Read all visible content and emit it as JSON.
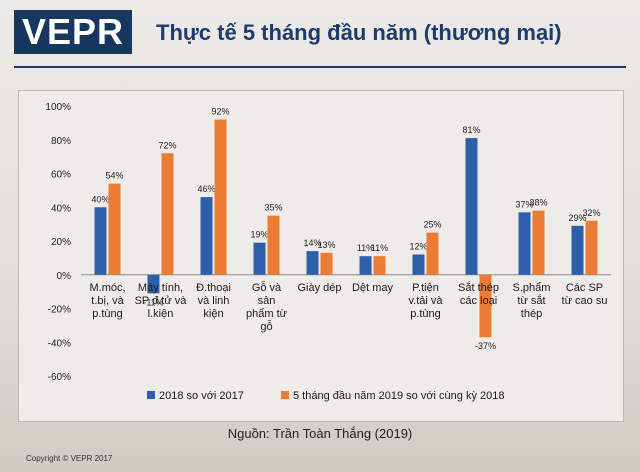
{
  "header": {
    "logo": "VEPR",
    "title": "Thực tế 5 tháng đầu năm (thương mại)"
  },
  "chart_data": {
    "type": "bar",
    "title": "",
    "xlabel": "",
    "ylabel": "",
    "ylim": [
      -60,
      100
    ],
    "yticks": [
      "100%",
      "80%",
      "60%",
      "40%",
      "20%",
      "0%",
      "-20%",
      "-40%",
      "-60%"
    ],
    "grid": false,
    "legend_position": "bottom",
    "categories": [
      [
        "M.móc,",
        "t.bị, và",
        "p.tùng"
      ],
      [
        "Máy tính,",
        "SP đ.tử và",
        "l.kiện"
      ],
      [
        "Đ.thoại",
        "và linh",
        "kiện"
      ],
      [
        "Gỗ và",
        "sản",
        "phẩm từ",
        "gỗ"
      ],
      [
        "Giày dép"
      ],
      [
        "Dệt may"
      ],
      [
        "P.tiện",
        "v.tải và",
        "p.tùng"
      ],
      [
        "Sắt thép",
        "các loại"
      ],
      [
        "S.phẩm",
        "từ sắt",
        "thép"
      ],
      [
        "Các SP",
        "từ cao su"
      ]
    ],
    "series": [
      {
        "name": "2018 so với 2017",
        "color": "#2e5fa8",
        "values": [
          40,
          -11,
          46,
          19,
          14,
          11,
          12,
          81,
          37,
          29
        ],
        "labels": [
          "40%",
          "-11%",
          "46%",
          "19%",
          "14%",
          "11%",
          "12%",
          "81%",
          "37%",
          "29%"
        ]
      },
      {
        "name": "5 tháng đầu năm 2019 so với cùng kỳ 2018",
        "color": "#ec7b33",
        "values": [
          54,
          72,
          92,
          35,
          13,
          11,
          25,
          -37,
          38,
          32
        ],
        "labels": [
          "54%",
          "72%",
          "92%",
          "35%",
          "13%",
          "11%",
          "25%",
          "-37%",
          "38%",
          "32%"
        ]
      }
    ]
  },
  "source": "Nguồn: Trần Toàn Thắng (2019)",
  "copyright": "Copyright © VEPR 2017"
}
